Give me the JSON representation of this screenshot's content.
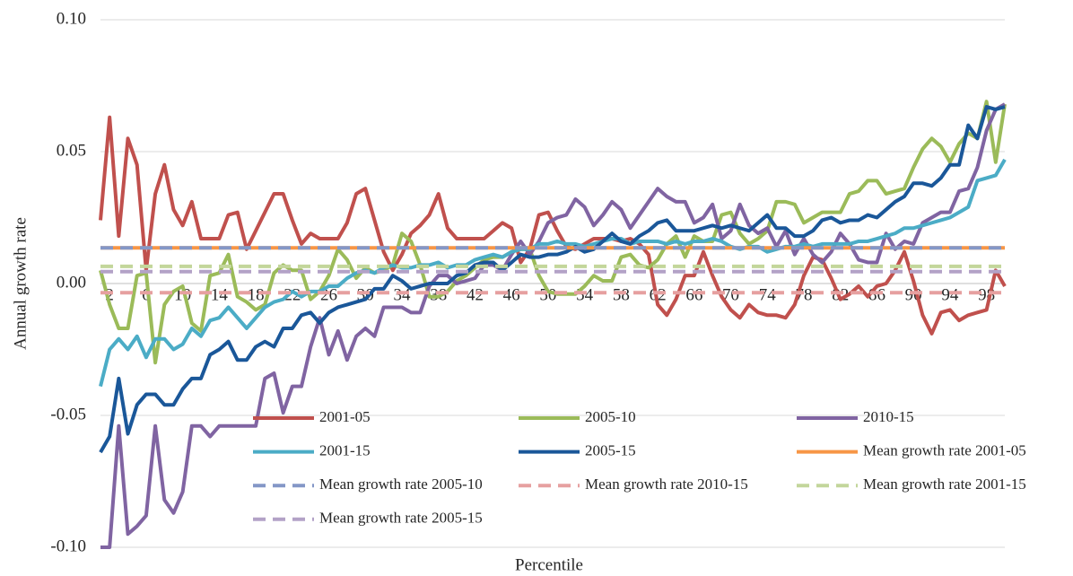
{
  "chart_data": {
    "type": "line",
    "y_label": "Annual growth rate",
    "x_label": "Percentile",
    "xlim": [
      1,
      100
    ],
    "xticks": [
      2,
      6,
      10,
      14,
      18,
      22,
      26,
      30,
      34,
      38,
      42,
      46,
      50,
      54,
      58,
      62,
      66,
      70,
      74,
      78,
      82,
      86,
      90,
      94,
      98
    ],
    "ylim": [
      -0.1,
      0.1
    ],
    "yticks": [
      {
        "value": -0.1,
        "label": "-0.10"
      },
      -0.05,
      {
        "value": 0,
        "label": "0.00"
      },
      0.05,
      {
        "value": 0.1,
        "label": "0.10"
      }
    ],
    "grid": true,
    "legend": "inside-bottom",
    "series": [
      {
        "name": "2001-05",
        "color": "#c0504d",
        "values": [
          0.024,
          0.063,
          0.018,
          0.055,
          0.045,
          0.005,
          0.034,
          0.045,
          0.028,
          0.022,
          0.031,
          0.017,
          0.017,
          0.017,
          0.026,
          0.027,
          0.013,
          0.02,
          0.027,
          0.034,
          0.034,
          0.024,
          0.015,
          0.019,
          0.017,
          0.017,
          0.017,
          0.023,
          0.034,
          0.036,
          0.024,
          0.012,
          0.005,
          0.011,
          0.019,
          0.022,
          0.026,
          0.034,
          0.021,
          0.017,
          0.017,
          0.017,
          0.017,
          0.02,
          0.023,
          0.021,
          0.008,
          0.013,
          0.026,
          0.027,
          0.02,
          0.014,
          0.013,
          0.015,
          0.017,
          0.017,
          0.017,
          0.016,
          0.017,
          0.015,
          0.011,
          -0.008,
          -0.012,
          -0.006,
          0.003,
          0.003,
          0.012,
          0.003,
          -0.005,
          -0.01,
          -0.013,
          -0.008,
          -0.011,
          -0.012,
          -0.012,
          -0.013,
          -0.008,
          0.003,
          0.01,
          0.009,
          0.002,
          -0.006,
          -0.004,
          -0.001,
          -0.005,
          -0.001,
          0.0,
          0.005,
          0.012,
          0.001,
          -0.012,
          -0.019,
          -0.011,
          -0.01,
          -0.014,
          -0.012,
          -0.011,
          -0.01,
          0.005,
          -0.001
        ]
      },
      {
        "name": "2005-10",
        "color": "#9bbb59",
        "values": [
          0.005,
          -0.008,
          -0.017,
          -0.017,
          0.003,
          0.004,
          -0.03,
          -0.008,
          -0.003,
          -0.001,
          -0.015,
          -0.018,
          0.003,
          0.004,
          0.011,
          -0.005,
          -0.007,
          -0.01,
          -0.008,
          0.004,
          0.007,
          0.005,
          0.005,
          -0.006,
          -0.003,
          0.003,
          0.013,
          0.009,
          0.002,
          0.006,
          0.004,
          0.005,
          0.007,
          0.019,
          0.016,
          0.007,
          -0.005,
          -0.005,
          -0.003,
          0.001,
          0.003,
          0.006,
          0.009,
          0.01,
          0.01,
          0.012,
          0.013,
          0.013,
          0.003,
          -0.003,
          -0.004,
          -0.004,
          -0.004,
          -0.001,
          0.003,
          0.001,
          0.001,
          0.01,
          0.011,
          0.007,
          0.006,
          0.009,
          0.015,
          0.018,
          0.01,
          0.018,
          0.016,
          0.016,
          0.026,
          0.027,
          0.019,
          0.015,
          0.017,
          0.02,
          0.031,
          0.031,
          0.03,
          0.023,
          0.025,
          0.027,
          0.027,
          0.027,
          0.034,
          0.035,
          0.039,
          0.039,
          0.034,
          0.035,
          0.036,
          0.044,
          0.051,
          0.055,
          0.052,
          0.046,
          0.053,
          0.057,
          0.055,
          0.069,
          0.046,
          0.068
        ]
      },
      {
        "name": "2010-15",
        "color": "#8064a2",
        "values": [
          -0.1,
          -0.1,
          -0.054,
          -0.095,
          -0.092,
          -0.088,
          -0.054,
          -0.082,
          -0.087,
          -0.079,
          -0.054,
          -0.054,
          -0.058,
          -0.054,
          -0.054,
          -0.054,
          -0.054,
          -0.054,
          -0.036,
          -0.034,
          -0.049,
          -0.039,
          -0.039,
          -0.024,
          -0.013,
          -0.027,
          -0.018,
          -0.029,
          -0.02,
          -0.017,
          -0.02,
          -0.009,
          -0.009,
          -0.009,
          -0.011,
          -0.011,
          -0.001,
          0.003,
          0.003,
          0.0,
          0.001,
          0.002,
          0.007,
          0.007,
          0.005,
          0.011,
          0.016,
          0.011,
          0.016,
          0.023,
          0.025,
          0.026,
          0.032,
          0.029,
          0.022,
          0.026,
          0.031,
          0.028,
          0.021,
          0.026,
          0.031,
          0.036,
          0.033,
          0.031,
          0.031,
          0.023,
          0.025,
          0.03,
          0.017,
          0.02,
          0.03,
          0.022,
          0.019,
          0.021,
          0.014,
          0.02,
          0.011,
          0.017,
          0.011,
          0.008,
          0.012,
          0.019,
          0.015,
          0.009,
          0.008,
          0.008,
          0.019,
          0.013,
          0.016,
          0.015,
          0.023,
          0.025,
          0.027,
          0.027,
          0.035,
          0.036,
          0.044,
          0.058,
          0.066,
          0.068
        ]
      },
      {
        "name": "2001-15",
        "color": "#4bacc6",
        "values": [
          -0.039,
          -0.025,
          -0.021,
          -0.025,
          -0.02,
          -0.028,
          -0.021,
          -0.021,
          -0.025,
          -0.023,
          -0.017,
          -0.02,
          -0.014,
          -0.013,
          -0.009,
          -0.013,
          -0.017,
          -0.013,
          -0.009,
          -0.007,
          -0.006,
          -0.003,
          -0.005,
          -0.003,
          -0.003,
          -0.001,
          -0.001,
          0.002,
          0.004,
          0.005,
          0.004,
          0.006,
          0.007,
          0.006,
          0.006,
          0.007,
          0.007,
          0.008,
          0.006,
          0.007,
          0.007,
          0.009,
          0.01,
          0.011,
          0.01,
          0.012,
          0.013,
          0.013,
          0.015,
          0.015,
          0.016,
          0.015,
          0.015,
          0.014,
          0.015,
          0.016,
          0.017,
          0.017,
          0.015,
          0.016,
          0.016,
          0.016,
          0.015,
          0.016,
          0.015,
          0.016,
          0.016,
          0.017,
          0.016,
          0.014,
          0.013,
          0.014,
          0.014,
          0.012,
          0.013,
          0.014,
          0.014,
          0.015,
          0.014,
          0.015,
          0.015,
          0.015,
          0.015,
          0.016,
          0.016,
          0.017,
          0.018,
          0.019,
          0.021,
          0.021,
          0.022,
          0.023,
          0.024,
          0.025,
          0.027,
          0.029,
          0.039,
          0.04,
          0.041,
          0.047
        ]
      },
      {
        "name": "2005-15",
        "color": "#1a5799",
        "values": [
          -0.064,
          -0.058,
          -0.036,
          -0.057,
          -0.046,
          -0.042,
          -0.042,
          -0.046,
          -0.046,
          -0.04,
          -0.036,
          -0.036,
          -0.027,
          -0.025,
          -0.022,
          -0.029,
          -0.029,
          -0.024,
          -0.022,
          -0.024,
          -0.017,
          -0.017,
          -0.012,
          -0.011,
          -0.015,
          -0.011,
          -0.009,
          -0.008,
          -0.007,
          -0.006,
          -0.002,
          -0.002,
          0.003,
          0.001,
          -0.002,
          -0.001,
          0.0,
          0.0,
          0.0,
          0.003,
          0.004,
          0.007,
          0.008,
          0.008,
          0.005,
          0.008,
          0.011,
          0.01,
          0.01,
          0.011,
          0.011,
          0.012,
          0.014,
          0.012,
          0.013,
          0.016,
          0.019,
          0.016,
          0.015,
          0.018,
          0.02,
          0.023,
          0.024,
          0.02,
          0.02,
          0.02,
          0.021,
          0.022,
          0.021,
          0.022,
          0.021,
          0.02,
          0.023,
          0.026,
          0.021,
          0.021,
          0.018,
          0.018,
          0.02,
          0.024,
          0.025,
          0.023,
          0.024,
          0.024,
          0.026,
          0.025,
          0.028,
          0.031,
          0.033,
          0.038,
          0.038,
          0.037,
          0.04,
          0.045,
          0.045,
          0.06,
          0.055,
          0.067,
          0.066,
          0.067
        ]
      },
      {
        "name": "Mean growth rate 2001-05",
        "color": "#f79646",
        "dashed": false,
        "value": 0.0135
      },
      {
        "name": "Mean growth rate 2005-10",
        "color": "#8497c7",
        "dashed": true,
        "value": 0.0135
      },
      {
        "name": "Mean growth rate 2010-15",
        "color": "#e6a0a0",
        "dashed": true,
        "value": -0.0035
      },
      {
        "name": "Mean growth rate 2001-15",
        "color": "#c3d69b",
        "dashed": true,
        "value": 0.0065
      },
      {
        "name": "Mean growth rate 2005-15",
        "color": "#b3a2c7",
        "dashed": true,
        "value": 0.0045
      }
    ]
  }
}
